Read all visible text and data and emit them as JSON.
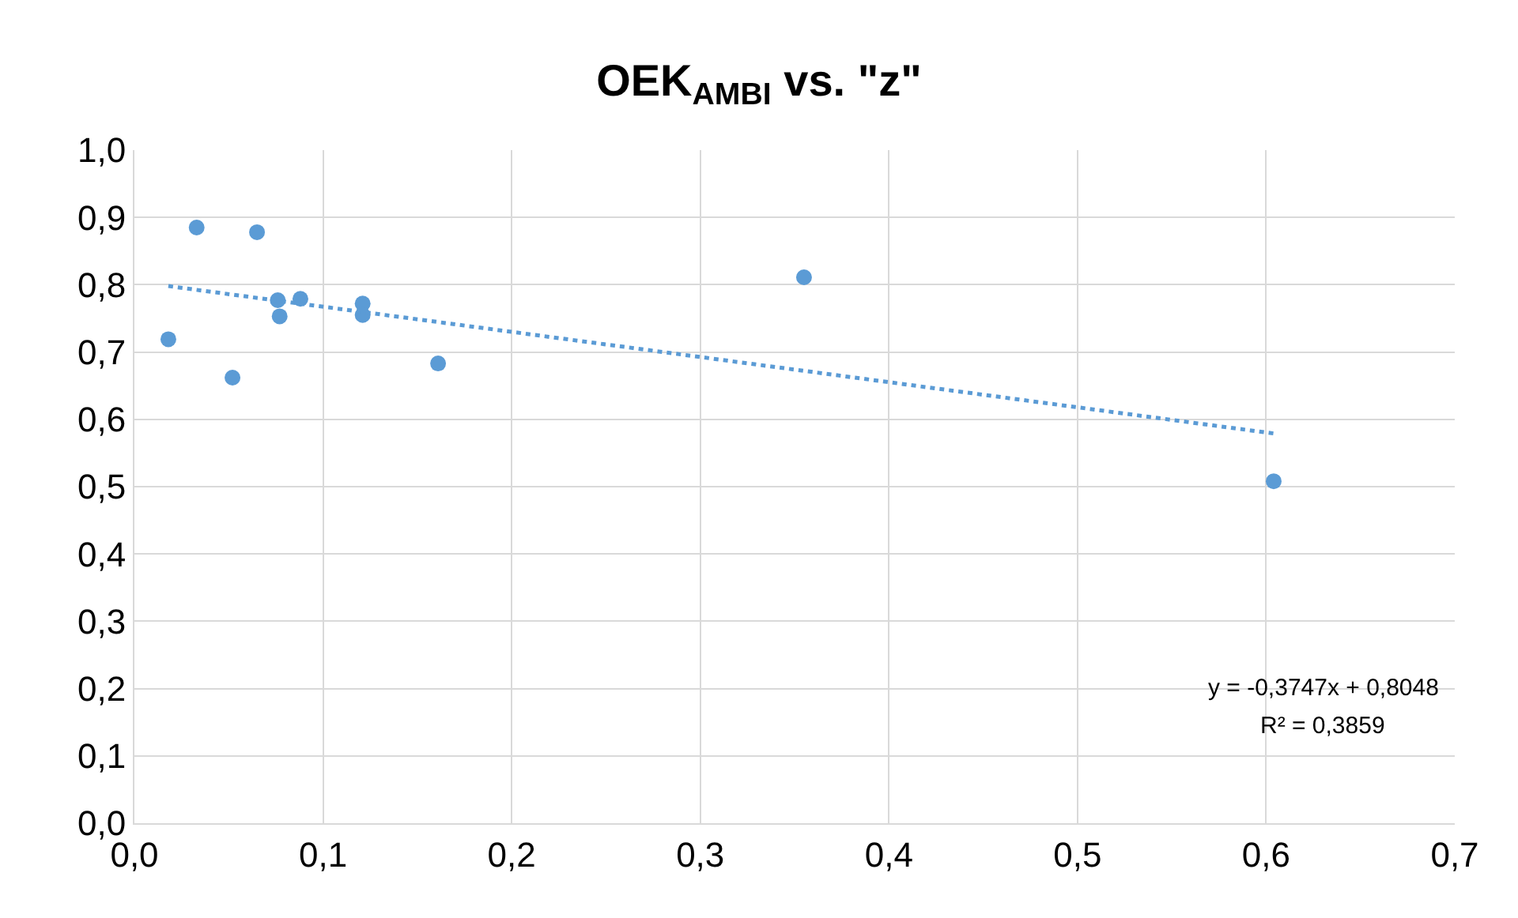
{
  "chart_data": {
    "type": "scatter",
    "title": "OEK$_{AMBI}$ vs. \"z\"",
    "x": [
      0.018,
      0.033,
      0.052,
      0.065,
      0.076,
      0.077,
      0.088,
      0.121,
      0.121,
      0.161,
      0.355,
      0.604
    ],
    "series": [
      {
        "color": "#5b9bd5",
        "values": [
          0.719,
          0.885,
          0.662,
          0.878,
          0.777,
          0.753,
          0.779,
          0.772,
          0.755,
          0.683,
          0.811,
          0.508
        ],
        "marker": "circle"
      },
      {
        "type": "line",
        "color": "#5b9bd5",
        "x": [
          0.018,
          0.604
        ],
        "values": [
          0.798,
          0.579
        ],
        "line_style": "dotted",
        "marker": "none"
      }
    ],
    "xlim": [
      0,
      0.7
    ],
    "xticks": [
      {
        "value": 0,
        "label": "0,0"
      },
      {
        "value": 0.1,
        "label": "0,1"
      },
      {
        "value": 0.2,
        "label": "0,2"
      },
      {
        "value": 0.3,
        "label": "0,3"
      },
      {
        "value": 0.4,
        "label": "0,4"
      },
      {
        "value": 0.5,
        "label": "0,5"
      },
      {
        "value": 0.6,
        "label": "0,6"
      },
      {
        "value": 0.7,
        "label": "0,7"
      }
    ],
    "ylim": [
      0,
      1
    ],
    "yticks": [
      {
        "value": 0,
        "label": "0,0"
      },
      {
        "value": 0.1,
        "label": "0,1"
      },
      {
        "value": 0.2,
        "label": "0,2"
      },
      {
        "value": 0.3,
        "label": "0,3"
      },
      {
        "value": 0.4,
        "label": "0,4"
      },
      {
        "value": 0.5,
        "label": "0,5"
      },
      {
        "value": 0.6,
        "label": "0,6"
      },
      {
        "value": 0.7,
        "label": "0,7"
      },
      {
        "value": 0.8,
        "label": "0,8"
      },
      {
        "value": 0.9,
        "label": "0,9"
      },
      {
        "value": 1.0,
        "label": "1,0"
      }
    ],
    "grid": true,
    "annotations": [
      "y = -0,3747x + 0,8048",
      "R² = 0,3859"
    ]
  }
}
